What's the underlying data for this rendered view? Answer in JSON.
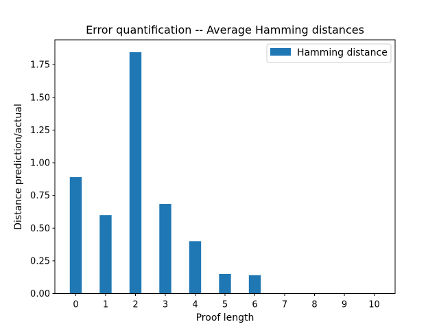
{
  "chart_data": {
    "type": "bar",
    "title": "Error quantification -- Average Hamming distances",
    "xlabel": "Proof length",
    "ylabel": "Distance prediction/actual",
    "categories": [
      "0",
      "1",
      "2",
      "3",
      "4",
      "5",
      "6",
      "7",
      "8",
      "9",
      "10"
    ],
    "series": [
      {
        "name": "Hamming distance",
        "color": "#1f77b4",
        "values": [
          0.89,
          0.6,
          1.845,
          0.685,
          0.4,
          0.15,
          0.14,
          0,
          0,
          0,
          0
        ]
      }
    ],
    "ylim": [
      0,
      1.9398
    ],
    "yticks": [
      "0.00",
      "0.25",
      "0.50",
      "0.75",
      "1.00",
      "1.25",
      "1.50",
      "1.75"
    ],
    "grid": false,
    "legend_position": "top-right"
  }
}
